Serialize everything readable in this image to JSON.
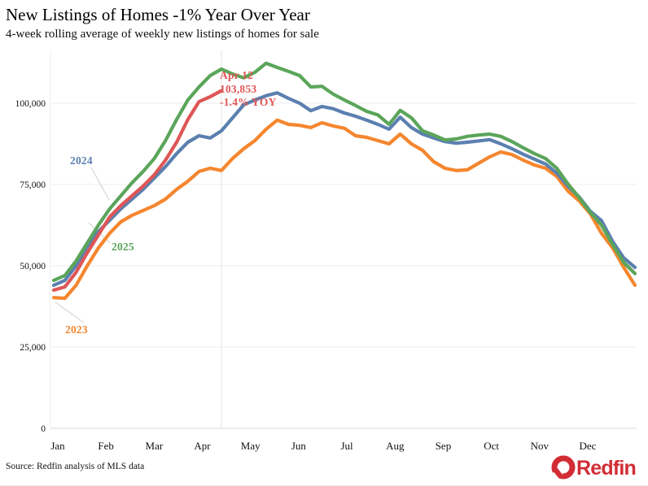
{
  "page": {
    "title": "New Listings of Homes -1% Year Over Year",
    "subtitle": "4-week rolling average of weekly new listings of homes for sale",
    "source": "Source: Redfin analysis of MLS data",
    "logo_text": "Redfin",
    "logo_color": "#d22d35"
  },
  "chart_data": {
    "type": "line",
    "title": "New Listings of Homes -1% Year Over Year",
    "subtitle": "4-week rolling average of weekly new listings of homes for sale",
    "xlabel": "",
    "ylabel": "",
    "x_unit": "week of year (Jan-Dec)",
    "ylim": [
      0,
      115000
    ],
    "grid": "horizontal gridlines at 25k/50k/75k/100k, baseline at 0, vertical marker line at Apr 12",
    "legend_position": "inline labels next to lines",
    "yticks": [
      0,
      25000,
      50000,
      75000,
      100000
    ],
    "ytick_labels": [
      "0",
      "25,000",
      "50,000",
      "75,000",
      "100,000"
    ],
    "months": [
      "Jan",
      "Feb",
      "Mar",
      "Apr",
      "May",
      "Jun",
      "Jul",
      "Aug",
      "Sep",
      "Oct",
      "Nov",
      "Dec"
    ],
    "series": [
      {
        "id": "y2023",
        "label": "2023",
        "color": "#f5862e",
        "values": [
          40200,
          40000,
          44000,
          50000,
          55500,
          60000,
          63500,
          65500,
          67000,
          68500,
          70500,
          73500,
          76000,
          79000,
          80000,
          79300,
          83000,
          86000,
          88500,
          92000,
          94800,
          93500,
          93200,
          92500,
          94000,
          93000,
          92300,
          90000,
          89500,
          88500,
          87500,
          90500,
          87500,
          85500,
          82000,
          80000,
          79300,
          79500,
          81500,
          83500,
          85000,
          84200,
          82500,
          81000,
          80000,
          77500,
          73000,
          70000,
          66000,
          60000,
          55500,
          49500,
          44000
        ]
      },
      {
        "id": "y2024",
        "label": "2024",
        "color": "#5b80b0",
        "values": [
          44000,
          45500,
          50000,
          56000,
          60500,
          64000,
          67500,
          70500,
          73500,
          77000,
          80500,
          84500,
          88000,
          90000,
          89300,
          91500,
          95500,
          99500,
          101000,
          102300,
          103200,
          101500,
          100000,
          97700,
          99000,
          98300,
          97000,
          96000,
          94800,
          93500,
          92000,
          95700,
          92500,
          90500,
          89300,
          88200,
          87700,
          88000,
          88400,
          88800,
          87500,
          86000,
          84300,
          82800,
          81300,
          78500,
          74500,
          71200,
          66800,
          63900,
          57500,
          52400,
          49500
        ]
      },
      {
        "id": "y2025",
        "label": "2025",
        "color": "#5ba55a",
        "values": [
          45500,
          47000,
          51500,
          57000,
          62500,
          67500,
          71500,
          75500,
          79000,
          83000,
          88500,
          95000,
          101000,
          105000,
          108500,
          110500,
          109000,
          107800,
          109500,
          112300,
          111000,
          109800,
          108500,
          105000,
          105200,
          102800,
          101000,
          99300,
          97500,
          96400,
          93500,
          97800,
          95500,
          91500,
          90200,
          88700,
          89000,
          89800,
          90200,
          90500,
          89800,
          88200,
          86300,
          84500,
          83000,
          80000,
          75200,
          71000,
          66400,
          62500,
          56500,
          51000,
          47600
        ]
      },
      {
        "id": "highlight-ytd",
        "label": "",
        "color": "#de5656",
        "values": [
          42500,
          43500,
          48000,
          54000,
          59500,
          65000,
          68500,
          71500,
          74500,
          78000,
          82500,
          88000,
          95000,
          100500,
          102000,
          103853
        ]
      }
    ],
    "annotation": {
      "line1": "Apr 12",
      "line2": "103,853",
      "line3": "-1.4% YOY",
      "color": "#de5656",
      "week_index": 15,
      "value": 103853,
      "yoy_percent": -1.4
    }
  }
}
